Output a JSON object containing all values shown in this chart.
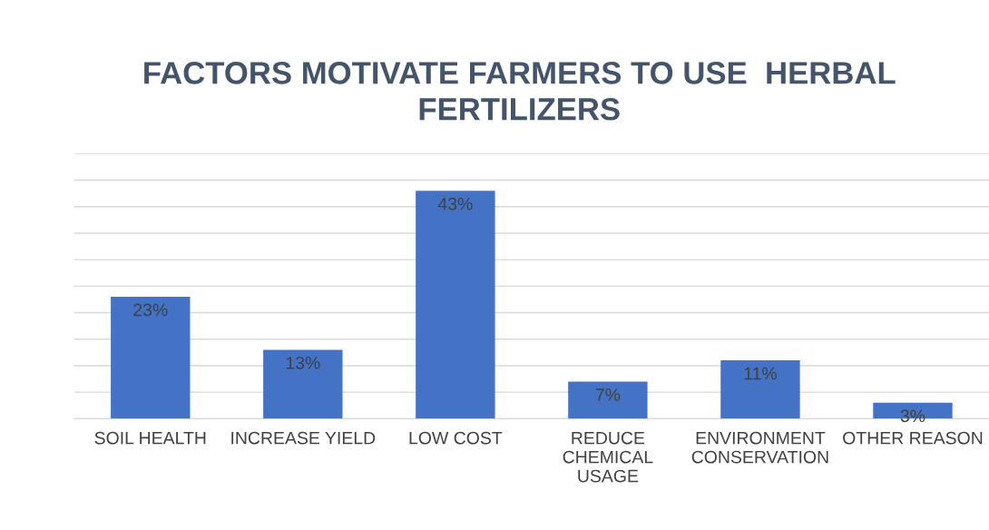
{
  "chart_data": {
    "type": "bar",
    "title": "FACTORS MOTIVATE FARMERS TO USE  HERBAL\nFERTILIZERS",
    "categories": [
      "SOIL HEALTH",
      "INCREASE YIELD",
      "LOW COST",
      "REDUCE\nCHEMICAL\nUSAGE",
      "ENVIRONMENT\nCONSERVATION",
      "OTHER REASON"
    ],
    "values": [
      23,
      13,
      43,
      7,
      11,
      3
    ],
    "value_labels": [
      "23%",
      "13%",
      "43%",
      "7%",
      "11%",
      "3%"
    ],
    "color": "#4472c4",
    "ylim": [
      0,
      50
    ],
    "yticks": [
      {
        "value": 0,
        "label": null
      },
      {
        "value": 5,
        "label": null
      },
      {
        "value": 10,
        "label": null
      },
      {
        "value": 15,
        "label": null
      },
      {
        "value": 20,
        "label": null
      },
      {
        "value": 25,
        "label": null
      },
      {
        "value": 30,
        "label": null
      },
      {
        "value": 35,
        "label": null
      },
      {
        "value": 40,
        "label": null
      },
      {
        "value": 45,
        "label": null
      },
      {
        "value": 50,
        "label": null
      }
    ],
    "grid": "y",
    "tick_labels": "x"
  }
}
